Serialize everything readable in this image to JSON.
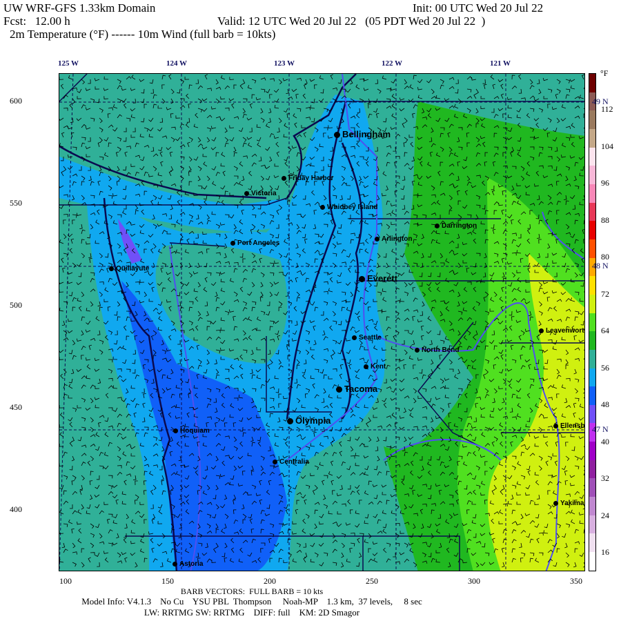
{
  "header": {
    "title": "UW WRF-GFS 1.33km Domain",
    "init": "Init: 00 UTC Wed 20 Jul 22",
    "fcst": "Fcst:   12.00 h",
    "valid": "Valid: 12 UTC Wed 20 Jul 22   (05 PDT Wed 20 Jul 22  )",
    "fields": "2m Temperature (°F) ------ 10m Wind (full barb = 10kts)"
  },
  "lon_labels": [
    "125 W",
    "124 W",
    "123 W",
    "122 W",
    "121 W"
  ],
  "lat_labels": [
    "49 N",
    "48 N",
    "47 N"
  ],
  "y_axis_ticks": [
    "600",
    "550",
    "500",
    "450",
    "400"
  ],
  "x_axis_ticks": [
    "100",
    "150",
    "200",
    "250",
    "300",
    "350"
  ],
  "cities": [
    "Bellingham",
    "Friday Harbor",
    "Victoria",
    "Whidbey Island",
    "Darrington",
    "Arlington",
    "Port Angeles",
    "Quillayute",
    "Everett",
    "Seattle",
    "North Bend",
    "Leavenworth",
    "Kent",
    "Tacoma",
    "Olympia",
    "Ellensburg",
    "Hoquiam",
    "Centralia",
    "Yakima",
    "Astoria"
  ],
  "colorbar": {
    "unit": "°F",
    "labels": [
      "112",
      "104",
      "96",
      "88",
      "80",
      "72",
      "64",
      "56",
      "48",
      "40",
      "32",
      "24",
      "16"
    ],
    "colors": [
      "#6e0000",
      "#8c5a55",
      "#9a7a5e",
      "#c4a888",
      "#fce4ee",
      "#f8b8d8",
      "#f888b8",
      "#e83858",
      "#e80000",
      "#ff5000",
      "#ffa800",
      "#ffe000",
      "#d0f010",
      "#50e020",
      "#20b820",
      "#30b098",
      "#10a8f0",
      "#1060f8",
      "#7050f8",
      "#c030f0",
      "#a000c8",
      "#9020a0",
      "#a050b8",
      "#c088d0",
      "#d8b0e0",
      "#f0e0f0",
      "#ffffff"
    ]
  },
  "footer": {
    "barb": "BARB VECTORS:  FULL BARB = 10 kts",
    "model": "Model Info: V4.1.3    No Cu    YSU PBL  Thompson     Noah-MP    1.3 km,  37 levels,     8 sec",
    "physics": "LW: RRTMG SW: RRTMG    DIFF: full    KM: 2D Smagor"
  }
}
